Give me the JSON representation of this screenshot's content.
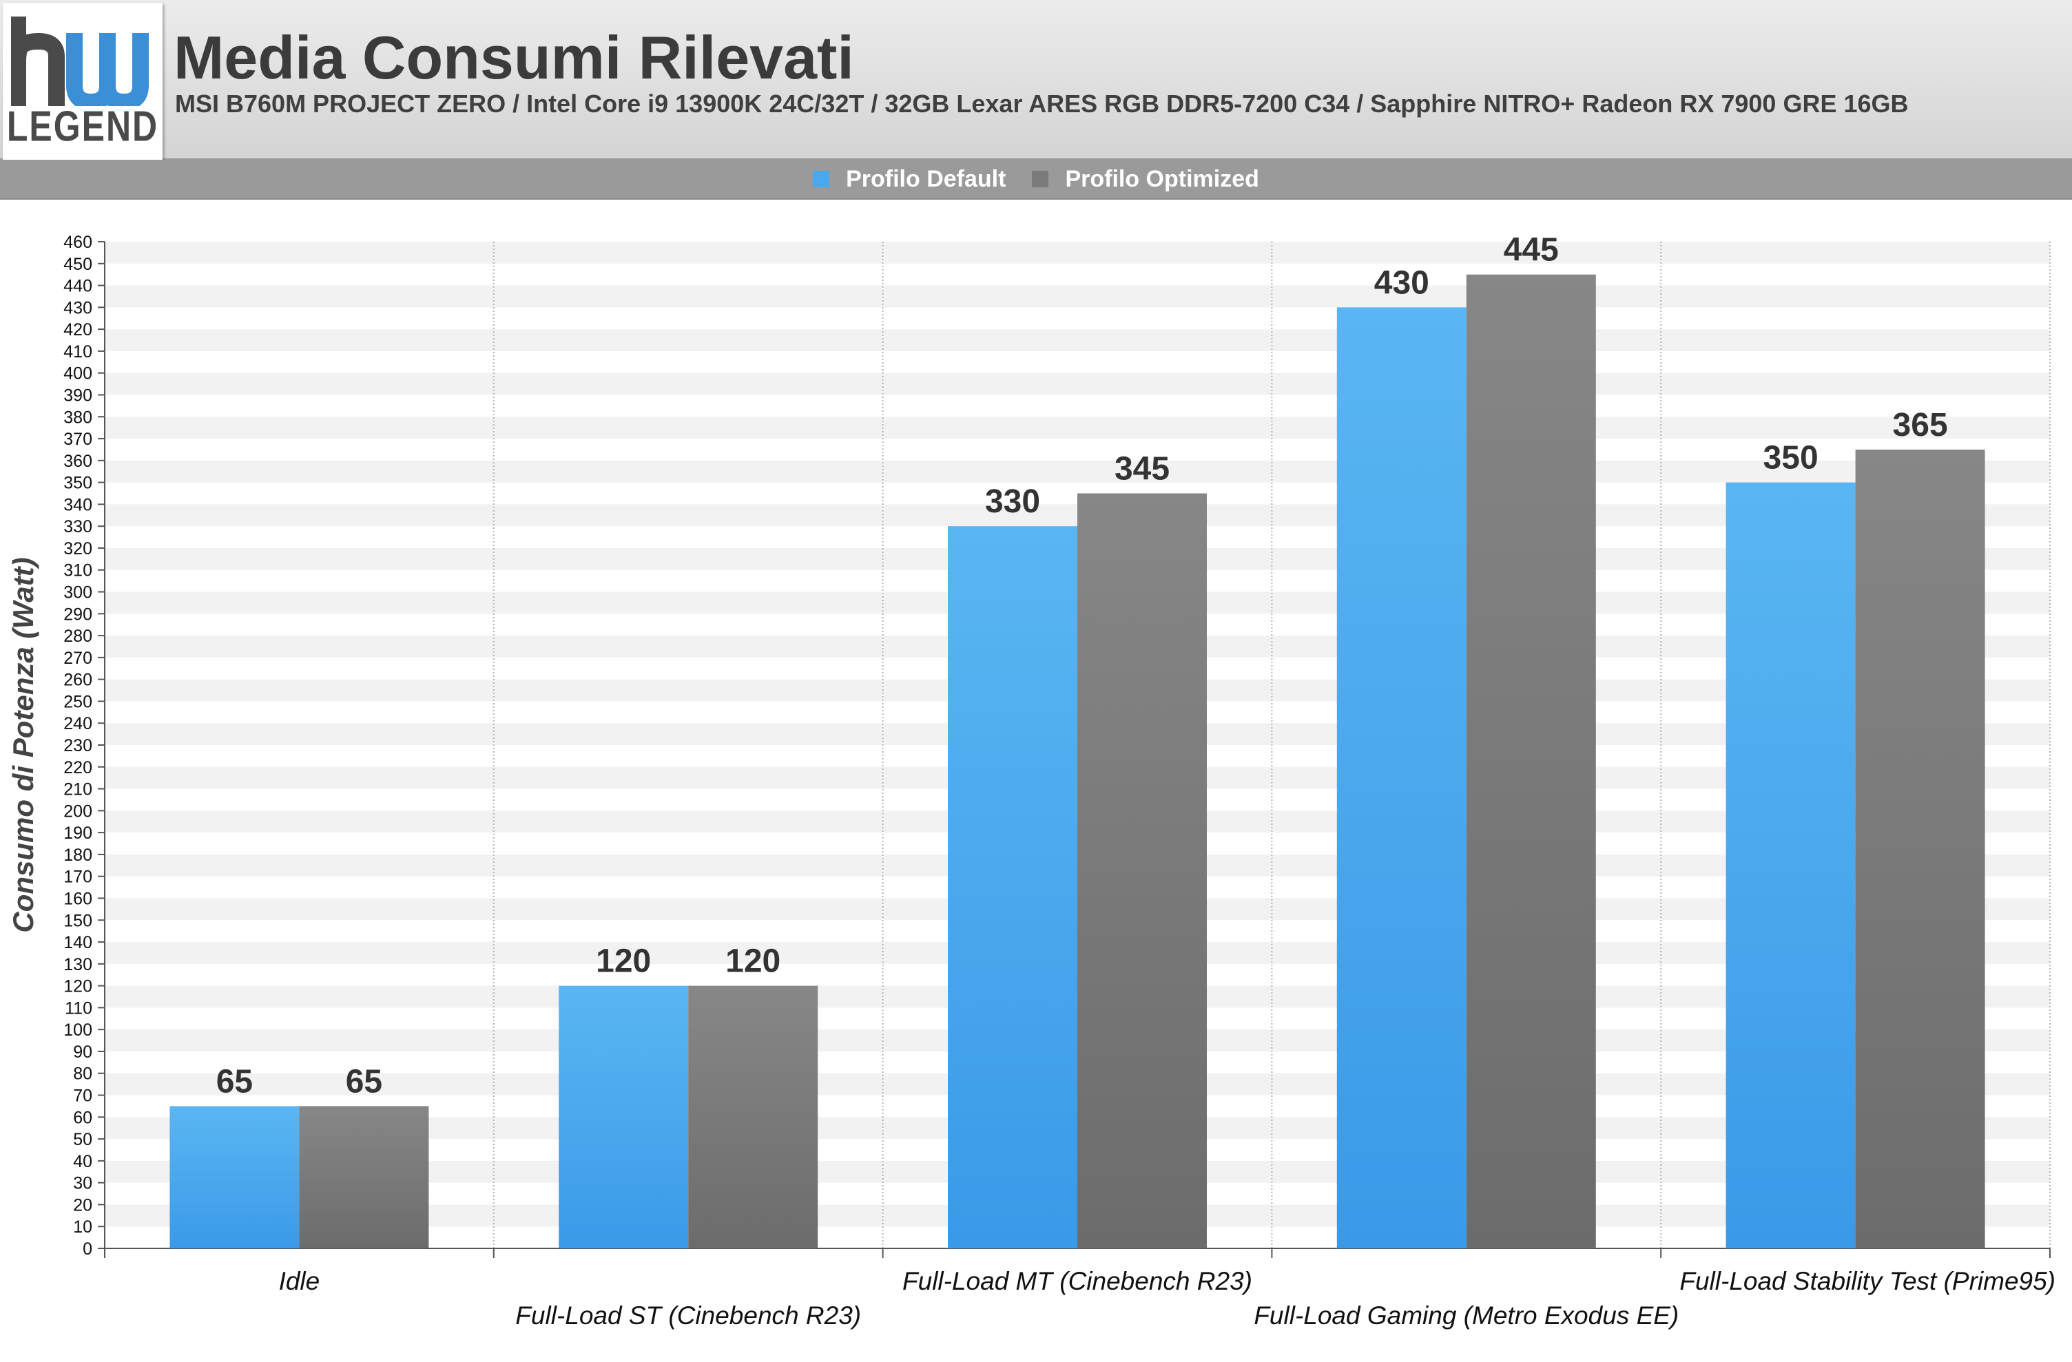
{
  "header": {
    "logo_text": "LEGEND",
    "logo_mark": "hw",
    "title": "Media Consumi Rilevati",
    "subtitle": "MSI B760M PROJECT ZERO / Intel Core i9 13900K 24C/32T / 32GB Lexar ARES RGB DDR5-7200 C34 / Sapphire NITRO+ Radeon RX 7900 GRE 16GB"
  },
  "colors": {
    "default": "#4aa8ee",
    "optimized": "#7a7a7a",
    "logo_blue": "#3b8fd6"
  },
  "chart_data": {
    "type": "bar",
    "categories": [
      "Idle",
      "Full-Load ST (Cinebench R23)",
      "Full-Load MT (Cinebench R23)",
      "Full-Load Gaming (Metro Exodus EE)",
      "Full-Load Stability Test (Prime95)"
    ],
    "series": [
      {
        "name": "Profilo Default",
        "values": [
          65,
          120,
          330,
          430,
          350
        ]
      },
      {
        "name": "Profilo Optimized",
        "values": [
          65,
          120,
          345,
          445,
          365
        ]
      }
    ],
    "title": "Media Consumi Rilevati",
    "xlabel": "",
    "ylabel": "Consumo di Potenza (Watt)",
    "ylim": [
      0,
      460
    ],
    "ytick_step": 10,
    "legend_position": "top-center",
    "grid": true
  }
}
